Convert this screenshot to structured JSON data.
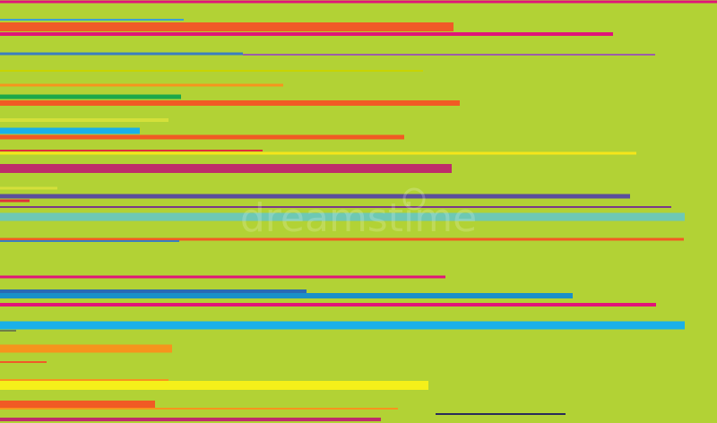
{
  "watermark": "dreamstime"
}
